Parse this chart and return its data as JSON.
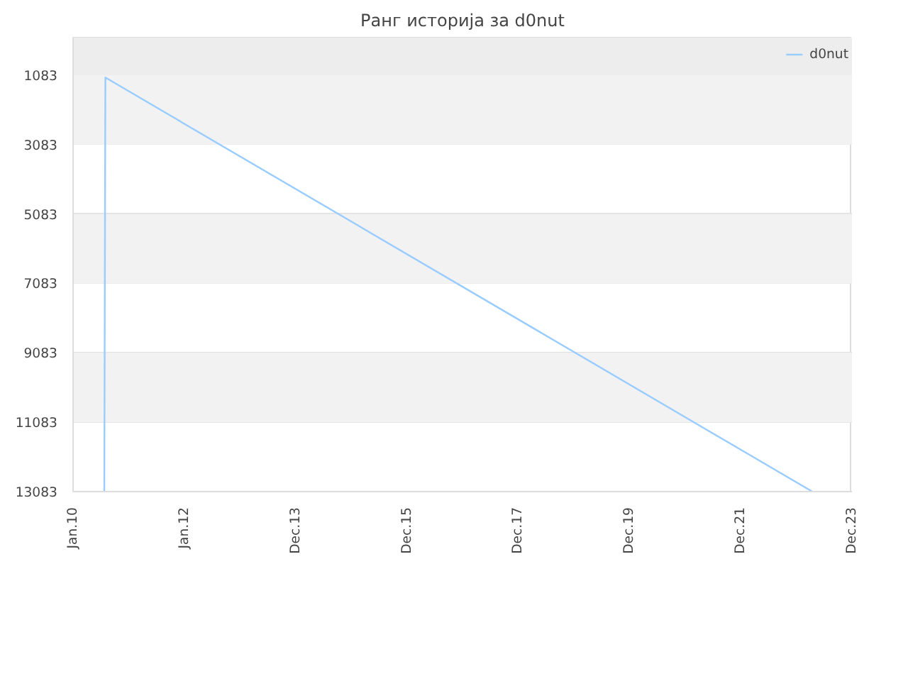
{
  "chart_data": {
    "type": "line",
    "title": "Ранг историја за d0nut",
    "x": [
      "2010-07-25",
      "2010-08-01",
      "2023-04-13"
    ],
    "series": [
      {
        "name": "d0nut",
        "color": "#99ccff",
        "values": [
          13083,
          1150,
          13083
        ]
      }
    ],
    "xlim": [
      "2010-01-01",
      "2023-12-29"
    ],
    "xticks": [
      {
        "value": "2010-01-01",
        "label": "Jan.10"
      },
      {
        "value": "2012-01-01",
        "label": "Jan.12"
      },
      {
        "value": "2013-12-31",
        "label": "Dec.13"
      },
      {
        "value": "2015-12-31",
        "label": "Dec.15"
      },
      {
        "value": "2017-12-30",
        "label": "Dec.17"
      },
      {
        "value": "2019-12-30",
        "label": "Dec.19"
      },
      {
        "value": "2021-12-29",
        "label": "Dec.21"
      },
      {
        "value": "2023-12-29",
        "label": "Dec.23"
      }
    ],
    "ylim": [
      13083,
      0
    ],
    "yticks": [
      1083,
      3083,
      5083,
      7083,
      9083,
      11083,
      13083
    ],
    "bands": [
      {
        "axis": "y",
        "from": 0,
        "to": 1083,
        "color": "#ededed"
      },
      {
        "axis": "y",
        "from": 1083,
        "to": 3083,
        "color": "#f2f2f2"
      },
      {
        "axis": "y",
        "from": 5083,
        "to": 7083,
        "color": "#f2f2f2"
      },
      {
        "axis": "y",
        "from": 9083,
        "to": 11083,
        "color": "#f2f2f2"
      }
    ],
    "grid": "y",
    "legend": "top right",
    "marker": "none",
    "line_style": "solid"
  }
}
